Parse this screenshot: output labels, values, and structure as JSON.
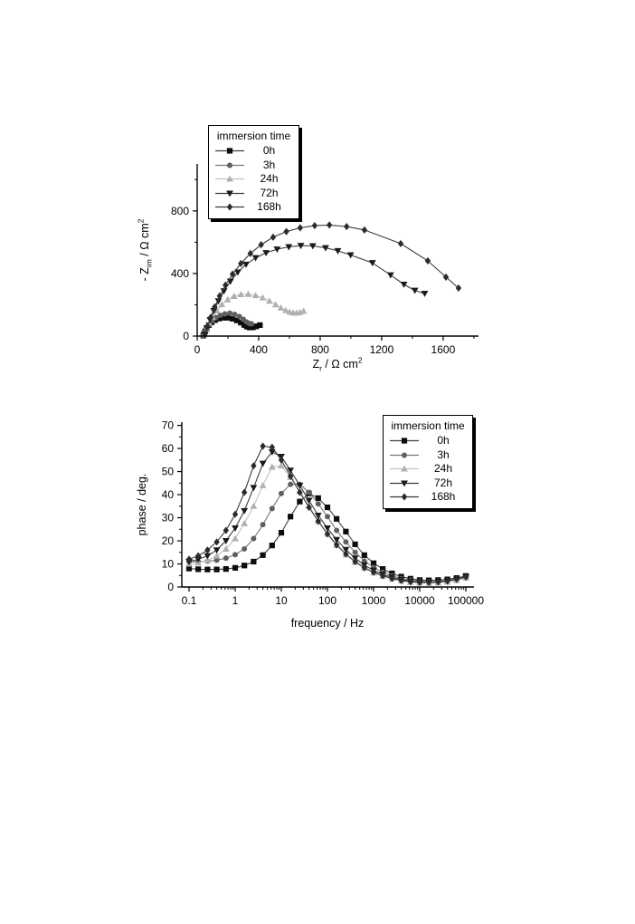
{
  "figure": {
    "background": "#ffffff",
    "axis_color": "#000000"
  },
  "chart_data": [
    {
      "id": "nyquist",
      "type": "scatter",
      "title": "",
      "xlabel": "Z_r / Ω cm²",
      "ylabel": "- Z_im / Ω cm²",
      "xlabel_rich": [
        {
          "text": "Z"
        },
        {
          "text": "r",
          "style": "sub"
        },
        {
          "text": " / Ω cm"
        },
        {
          "text": "2",
          "style": "sup"
        }
      ],
      "ylabel_rich": [
        {
          "text": "- Z"
        },
        {
          "text": "im",
          "style": "sub"
        },
        {
          "text": " / Ω cm"
        },
        {
          "text": "2",
          "style": "sup"
        }
      ],
      "xlim": [
        0,
        1830
      ],
      "ylim": [
        0,
        1100
      ],
      "x_ticks": [
        0,
        400,
        800,
        1200,
        1600
      ],
      "x_minor_step": 200,
      "y_ticks": [
        0,
        400,
        800
      ],
      "y_minor_step": 200,
      "grid": false,
      "legend": {
        "title": "immersion time",
        "position": "top-left"
      },
      "series": [
        {
          "name": "0h",
          "marker": "square",
          "color": "#0d0d0d",
          "line_color": "#3f3f3f",
          "points": [
            [
              40,
              3
            ],
            [
              45,
              14
            ],
            [
              52,
              30
            ],
            [
              62,
              50
            ],
            [
              76,
              70
            ],
            [
              94,
              88
            ],
            [
              116,
              102
            ],
            [
              142,
              112
            ],
            [
              170,
              117
            ],
            [
              200,
              117
            ],
            [
              230,
              111
            ],
            [
              258,
              100
            ],
            [
              284,
              86
            ],
            [
              306,
              71
            ],
            [
              324,
              60
            ],
            [
              342,
              55
            ],
            [
              362,
              56
            ],
            [
              384,
              62
            ],
            [
              408,
              70
            ]
          ]
        },
        {
          "name": "3h",
          "marker": "circle",
          "color": "#5f5f5f",
          "line_color": "#787878",
          "points": [
            [
              42,
              6
            ],
            [
              50,
              24
            ],
            [
              62,
              48
            ],
            [
              78,
              74
            ],
            [
              98,
              98
            ],
            [
              122,
              118
            ],
            [
              150,
              133
            ],
            [
              180,
              142
            ],
            [
              212,
              146
            ],
            [
              244,
              139
            ],
            [
              274,
              125
            ],
            [
              300,
              107
            ],
            [
              322,
              90
            ],
            [
              340,
              80
            ],
            [
              354,
              78
            ]
          ]
        },
        {
          "name": "24h",
          "marker": "triangle-up",
          "color": "#b0b0b0",
          "line_color": "#c2c2c2",
          "points": [
            [
              46,
              10
            ],
            [
              60,
              40
            ],
            [
              78,
              78
            ],
            [
              100,
              120
            ],
            [
              128,
              162
            ],
            [
              160,
              202
            ],
            [
              198,
              233
            ],
            [
              240,
              255
            ],
            [
              285,
              266
            ],
            [
              332,
              268
            ],
            [
              380,
              260
            ],
            [
              426,
              245
            ],
            [
              470,
              224
            ],
            [
              510,
              201
            ],
            [
              545,
              180
            ],
            [
              576,
              164
            ],
            [
              602,
              154
            ],
            [
              625,
              149
            ],
            [
              646,
              148
            ],
            [
              668,
              152
            ],
            [
              692,
              160
            ]
          ]
        },
        {
          "name": "72h",
          "marker": "triangle-down",
          "color": "#1a1a1a",
          "line_color": "#3a3a3a",
          "points": [
            [
              48,
              12
            ],
            [
              64,
              52
            ],
            [
              84,
              104
            ],
            [
              108,
              162
            ],
            [
              138,
              224
            ],
            [
              174,
              288
            ],
            [
              216,
              350
            ],
            [
              264,
              408
            ],
            [
              318,
              458
            ],
            [
              380,
              500
            ],
            [
              448,
              532
            ],
            [
              520,
              555
            ],
            [
              596,
              570
            ],
            [
              674,
              578
            ],
            [
              752,
              576
            ],
            [
              835,
              564
            ],
            [
              915,
              545
            ],
            [
              998,
              518
            ],
            [
              1140,
              468
            ],
            [
              1258,
              390
            ],
            [
              1345,
              330
            ],
            [
              1416,
              292
            ],
            [
              1480,
              272
            ]
          ]
        },
        {
          "name": "168h",
          "marker": "diamond",
          "color": "#2b2b2b",
          "line_color": "#3a3a3a",
          "points": [
            [
              50,
              15
            ],
            [
              66,
              60
            ],
            [
              88,
              120
            ],
            [
              114,
              186
            ],
            [
              146,
              256
            ],
            [
              184,
              326
            ],
            [
              230,
              396
            ],
            [
              284,
              464
            ],
            [
              346,
              528
            ],
            [
              416,
              584
            ],
            [
              494,
              632
            ],
            [
              580,
              668
            ],
            [
              670,
              692
            ],
            [
              764,
              706
            ],
            [
              860,
              710
            ],
            [
              972,
              700
            ],
            [
              1088,
              678
            ],
            [
              1324,
              591
            ],
            [
              1500,
              481
            ],
            [
              1618,
              377
            ],
            [
              1700,
              307
            ]
          ]
        }
      ]
    },
    {
      "id": "bode-phase",
      "type": "line",
      "title": "",
      "xlabel": "frequency / Hz",
      "ylabel": "phase / deg.",
      "xlabel_rich": [
        {
          "text": "frequency / Hz"
        }
      ],
      "ylabel_rich": [
        {
          "text": "phase / deg."
        }
      ],
      "xscale": "log",
      "xlim": [
        0.1,
        100000
      ],
      "ylim": [
        0,
        71.4
      ],
      "x_ticks": [
        0.1,
        1,
        10,
        100,
        1000,
        10000,
        100000
      ],
      "y_ticks": [
        0,
        10,
        20,
        30,
        40,
        50,
        60,
        70
      ],
      "y_minor_step": 5,
      "grid": false,
      "legend": {
        "title": "immersion time",
        "position": "top-right"
      },
      "x": [
        0.1,
        0.158,
        0.251,
        0.398,
        0.631,
        1,
        1.58,
        2.51,
        3.98,
        6.31,
        10,
        15.8,
        25.1,
        39.8,
        63.1,
        100,
        158,
        251,
        398,
        631,
        1000,
        1580,
        2510,
        3980,
        6310,
        10000,
        15800,
        25100,
        39800,
        63100,
        100000
      ],
      "series": [
        {
          "name": "0h",
          "marker": "square",
          "color": "#0d0d0d",
          "line_color": "#3f3f3f",
          "values": [
            8,
            7.7,
            7.6,
            7.6,
            7.8,
            8.3,
            9.3,
            11,
            13.8,
            18,
            23.5,
            30.5,
            37,
            40.5,
            38.5,
            34.5,
            29.5,
            24,
            18.5,
            13.8,
            10.3,
            7.8,
            5.9,
            4.5,
            3.6,
            3,
            2.9,
            3,
            3.3,
            3.9,
            4.8
          ]
        },
        {
          "name": "3h",
          "marker": "circle",
          "color": "#5f5f5f",
          "line_color": "#787878",
          "values": [
            11,
            11,
            11.2,
            11.6,
            12.5,
            14,
            16.5,
            21,
            27,
            34,
            40.5,
            44.5,
            44.5,
            41,
            36,
            30.5,
            24.5,
            19.5,
            15,
            11.3,
            8.5,
            6.4,
            4.9,
            3.7,
            3,
            2.5,
            2.3,
            2.4,
            2.8,
            3.5,
            4.4
          ]
        },
        {
          "name": "24h",
          "marker": "triangle-up",
          "color": "#b0b0b0",
          "line_color": "#c2c2c2",
          "values": [
            10,
            10.5,
            11.5,
            13.5,
            16.5,
            21,
            27.5,
            35,
            44,
            52,
            52.5,
            47.5,
            41.5,
            35,
            28.5,
            23,
            18,
            14,
            10.8,
            8.2,
            6.2,
            4.7,
            3.6,
            2.7,
            2.1,
            1.8,
            1.7,
            1.8,
            2.2,
            2.9,
            3.9
          ]
        },
        {
          "name": "72h",
          "marker": "triangle-down",
          "color": "#1a1a1a",
          "line_color": "#3a3a3a",
          "values": [
            11,
            12,
            13.5,
            16,
            20,
            25.5,
            33,
            43,
            53.5,
            58.5,
            56.5,
            50.5,
            44,
            37.5,
            31,
            25.5,
            20.5,
            16.2,
            12.5,
            9.5,
            7.2,
            5.5,
            4.2,
            3.2,
            2.5,
            2.1,
            2,
            2.2,
            2.6,
            3.3,
            4.3
          ]
        },
        {
          "name": "168h",
          "marker": "diamond",
          "color": "#2b2b2b",
          "line_color": "#3a3a3a",
          "values": [
            12,
            13.5,
            16,
            19.5,
            24.5,
            31.5,
            41,
            52.5,
            61,
            60.5,
            55,
            48,
            41,
            34.5,
            28.5,
            23,
            18.3,
            14.3,
            11,
            8.4,
            6.4,
            4.9,
            3.7,
            2.8,
            2.3,
            2,
            2,
            2.2,
            2.6,
            3.4,
            4.4
          ]
        }
      ]
    }
  ]
}
